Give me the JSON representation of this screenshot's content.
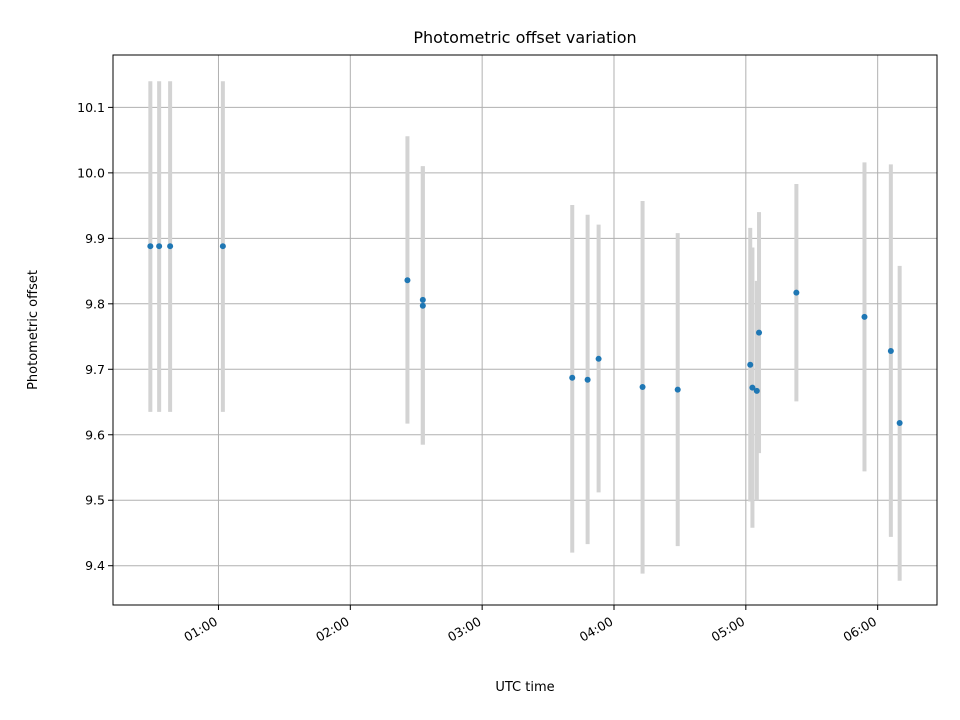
{
  "chart_data": {
    "type": "scatter",
    "title": "Photometric offset variation",
    "xlabel": "UTC time",
    "ylabel": "Photometric offset",
    "x_axis": "time",
    "xlim": [
      "00:12",
      "06:27"
    ],
    "ylim": [
      9.34,
      10.18
    ],
    "x_ticks": [
      "01:00",
      "02:00",
      "03:00",
      "04:00",
      "05:00",
      "06:00"
    ],
    "y_ticks": [
      9.4,
      9.5,
      9.6,
      9.7,
      9.8,
      9.9,
      10.0,
      10.1
    ],
    "y_tick_labels": [
      "9.4",
      "9.5",
      "9.6",
      "9.7",
      "9.8",
      "9.9",
      "10.0",
      "10.1"
    ],
    "x_tick_rotation_deg": 30,
    "grid": true,
    "legend": "none",
    "colors": {
      "point": "#1f77b4",
      "errorbar": "#d3d3d3",
      "grid": "#b0b0b0",
      "axis": "#000000"
    },
    "points": [
      {
        "x": "00:29",
        "y": 9.888,
        "ylo": 9.635,
        "yhi": 10.14
      },
      {
        "x": "00:33",
        "y": 9.888,
        "ylo": 9.635,
        "yhi": 10.14
      },
      {
        "x": "00:38",
        "y": 9.888,
        "ylo": 9.635,
        "yhi": 10.14
      },
      {
        "x": "01:02",
        "y": 9.888,
        "ylo": 9.635,
        "yhi": 10.14
      },
      {
        "x": "02:26",
        "y": 9.836,
        "ylo": 9.617,
        "yhi": 10.056
      },
      {
        "x": "02:33",
        "y": 9.806,
        "ylo": 9.585,
        "yhi": 10.01
      },
      {
        "x": "02:33",
        "y": 9.797,
        "ylo": 9.585,
        "yhi": 10.01
      },
      {
        "x": "03:41",
        "y": 9.687,
        "ylo": 9.42,
        "yhi": 9.951
      },
      {
        "x": "03:48",
        "y": 9.684,
        "ylo": 9.433,
        "yhi": 9.936
      },
      {
        "x": "03:53",
        "y": 9.716,
        "ylo": 9.512,
        "yhi": 9.921
      },
      {
        "x": "04:13",
        "y": 9.673,
        "ylo": 9.388,
        "yhi": 9.957
      },
      {
        "x": "04:29",
        "y": 9.669,
        "ylo": 9.43,
        "yhi": 9.908
      },
      {
        "x": "05:02",
        "y": 9.707,
        "ylo": 9.498,
        "yhi": 9.916
      },
      {
        "x": "05:03",
        "y": 9.672,
        "ylo": 9.458,
        "yhi": 9.886
      },
      {
        "x": "05:05",
        "y": 9.667,
        "ylo": 9.5,
        "yhi": 9.835
      },
      {
        "x": "05:06",
        "y": 9.756,
        "ylo": 9.572,
        "yhi": 9.94
      },
      {
        "x": "05:23",
        "y": 9.817,
        "ylo": 9.651,
        "yhi": 9.983
      },
      {
        "x": "05:54",
        "y": 9.78,
        "ylo": 9.544,
        "yhi": 10.016
      },
      {
        "x": "06:06",
        "y": 9.728,
        "ylo": 9.444,
        "yhi": 10.013
      },
      {
        "x": "06:10",
        "y": 9.618,
        "ylo": 9.377,
        "yhi": 9.858
      }
    ]
  }
}
